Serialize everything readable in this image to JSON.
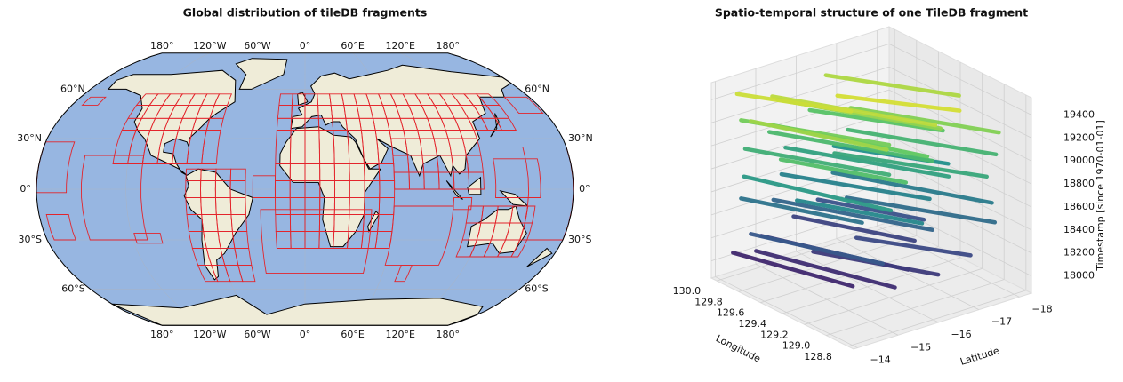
{
  "chart_data": [
    {
      "type": "map",
      "title": "Global distribution of tileDB fragments",
      "projection": "robinson",
      "color": "#e3242b",
      "xticks": [
        {
          "value": -180,
          "label": "180°"
        },
        {
          "value": -120,
          "label": "120°W"
        },
        {
          "value": -60,
          "label": "60°W"
        },
        {
          "value": 0,
          "label": "0°"
        },
        {
          "value": 60,
          "label": "60°E"
        },
        {
          "value": 120,
          "label": "120°E"
        },
        {
          "value": 180,
          "label": "180°"
        }
      ],
      "yticks": [
        {
          "value": 60,
          "label": "60°N"
        },
        {
          "value": 30,
          "label": "30°N"
        },
        {
          "value": 0,
          "label": "0°"
        },
        {
          "value": -30,
          "label": "30°S"
        },
        {
          "value": -60,
          "label": "60°S"
        }
      ],
      "grids": [
        {
          "lon": [
            -20,
            -10,
            0,
            10,
            20,
            30,
            40,
            50,
            60,
            70,
            80,
            90,
            100,
            110,
            120,
            130,
            140,
            150
          ],
          "lat": [
            35,
            42,
            50,
            57
          ]
        },
        {
          "lon": [
            -20,
            -10,
            0,
            10,
            20,
            30,
            40,
            50,
            60
          ],
          "lat": [
            -35,
            -25,
            -15,
            -5,
            5,
            15,
            25,
            35
          ]
        },
        {
          "lon": [
            -130,
            -120,
            -110,
            -100,
            -90,
            -80,
            -70,
            -60
          ],
          "lat": [
            15,
            25,
            35,
            42,
            50,
            57
          ]
        },
        {
          "lon": [
            -80,
            -70,
            -60,
            -50,
            -40
          ],
          "lat": [
            -55,
            -45,
            -35,
            -25,
            -15,
            -5,
            5,
            12
          ]
        },
        {
          "lon": [
            60,
            70,
            80,
            90,
            100,
            110,
            120
          ],
          "lat": [
            0,
            10,
            20,
            30,
            35
          ]
        },
        {
          "lon": [
            110,
            120,
            130,
            140,
            150,
            155
          ],
          "lat": [
            -40,
            -30,
            -20,
            -10
          ]
        }
      ],
      "fragments": [
        {
          "lon": [
            -180,
            -160
          ],
          "lat": [
            -2,
            28
          ]
        },
        {
          "lon": [
            -175,
            -160
          ],
          "lat": [
            -30,
            -15
          ]
        },
        {
          "lon": [
            -150,
            -110
          ],
          "lat": [
            -30,
            20
          ]
        },
        {
          "lon": [
            -118,
            -100
          ],
          "lat": [
            -32,
            -26
          ]
        },
        {
          "lon": [
            -30,
            45
          ],
          "lat": [
            -50,
            -12
          ]
        },
        {
          "lon": [
            60,
            100
          ],
          "lat": [
            -45,
            -10
          ]
        },
        {
          "lon": [
            72,
            80
          ],
          "lat": [
            -55,
            -45
          ]
        },
        {
          "lon": [
            150,
            180
          ],
          "lat": [
            -30,
            25
          ]
        },
        {
          "lon": [
            128,
            158
          ],
          "lat": [
            -5,
            18
          ]
        },
        {
          "lon": [
            160,
            178
          ],
          "lat": [
            45,
            55
          ]
        },
        {
          "lon": [
            -172,
            -160
          ],
          "lat": [
            50,
            55
          ]
        },
        {
          "lon": [
            -35,
            -20
          ],
          "lat": [
            -5,
            8
          ]
        },
        {
          "lon": [
            100,
            112
          ],
          "lat": [
            -12,
            -5
          ]
        }
      ]
    },
    {
      "type": "line3d",
      "title": "Spatio-temporal structure of one TileDB fragment",
      "xlabel": "Longitude",
      "ylabel": "Latitude",
      "zlabel": "Timestamp [since 1970-01-01]",
      "colormap": "viridis",
      "xlim": [
        128.75,
        130.05
      ],
      "ylim": [
        -13.9,
        -18.3
      ],
      "zlim": [
        17850,
        19550
      ],
      "xticks": [
        {
          "value": 130,
          "label": "130.0"
        },
        129.8,
        129.6,
        129.4,
        129.2,
        {
          "value": 129,
          "label": "129.0"
        },
        128.8
      ],
      "yticks": [
        {
          "value": -14,
          "label": "−14"
        },
        {
          "value": -15,
          "label": "−15"
        },
        {
          "value": -16,
          "label": "−16"
        },
        {
          "value": -17,
          "label": "−17"
        },
        {
          "value": -18,
          "label": "−18"
        }
      ],
      "zticks": [
        18000,
        18200,
        18400,
        18600,
        18800,
        19000,
        19200,
        19400
      ],
      "tracks": [
        {
          "lon": [
            130.0,
            129.2
          ],
          "lat": [
            -14.3,
            -15.1
          ],
          "time": 18050
        },
        {
          "lon": [
            129.9,
            129.0
          ],
          "lat": [
            -14.6,
            -15.6
          ],
          "time": 18080
        },
        {
          "lon": [
            130.0,
            129.1
          ],
          "lat": [
            -15.0,
            -16.2
          ],
          "time": 18120
        },
        {
          "lon": [
            129.6,
            128.9
          ],
          "lat": [
            -15.2,
            -16.4
          ],
          "time": 18150
        },
        {
          "lon": [
            130.0,
            129.3
          ],
          "lat": [
            -15.8,
            -16.9
          ],
          "time": 18200
        },
        {
          "lon": [
            129.5,
            128.9
          ],
          "lat": [
            -16.0,
            -17.2
          ],
          "time": 18230
        },
        {
          "lon": [
            130.0,
            129.4
          ],
          "lat": [
            -16.4,
            -17.4
          ],
          "time": 18280
        },
        {
          "lon": [
            129.8,
            129.0
          ],
          "lat": [
            -14.2,
            -15.3
          ],
          "time": 18320
        },
        {
          "lon": [
            130.0,
            129.1
          ],
          "lat": [
            -15.3,
            -16.8
          ],
          "time": 18400
        },
        {
          "lon": [
            129.7,
            128.9
          ],
          "lat": [
            -16.3,
            -17.8
          ],
          "time": 18450
        },
        {
          "lon": [
            130.0,
            129.3
          ],
          "lat": [
            -14.5,
            -15.6
          ],
          "time": 18500
        },
        {
          "lon": [
            129.9,
            129.0
          ],
          "lat": [
            -16.5,
            -18.0
          ],
          "time": 18550
        },
        {
          "lon": [
            130.0,
            129.2
          ],
          "lat": [
            -15.5,
            -17.0
          ],
          "time": 18600
        },
        {
          "lon": [
            129.6,
            128.9
          ],
          "lat": [
            -14.8,
            -16.0
          ],
          "time": 18640
        },
        {
          "lon": [
            130.0,
            129.4
          ],
          "lat": [
            -16.8,
            -18.0
          ],
          "time": 18700
        },
        {
          "lon": [
            129.9,
            129.0
          ],
          "lat": [
            -14.3,
            -15.5
          ],
          "time": 18760
        },
        {
          "lon": [
            130.0,
            129.1
          ],
          "lat": [
            -15.6,
            -17.2
          ],
          "time": 18820
        },
        {
          "lon": [
            129.7,
            128.9
          ],
          "lat": [
            -16.0,
            -17.6
          ],
          "time": 18870
        },
        {
          "lon": [
            130.0,
            129.2
          ],
          "lat": [
            -14.6,
            -16.0
          ],
          "time": 18920
        },
        {
          "lon": [
            129.8,
            129.0
          ],
          "lat": [
            -16.6,
            -18.1
          ],
          "time": 18960
        },
        {
          "lon": [
            130.0,
            129.1
          ],
          "lat": [
            -15.2,
            -16.8
          ],
          "time": 19000
        },
        {
          "lon": [
            129.6,
            128.9
          ],
          "lat": [
            -14.4,
            -15.6
          ],
          "time": 19040
        },
        {
          "lon": [
            130.0,
            129.3
          ],
          "lat": [
            -16.2,
            -17.6
          ],
          "time": 19080
        },
        {
          "lon": [
            129.9,
            129.0
          ],
          "lat": [
            -15.0,
            -16.4
          ],
          "time": 19130
        },
        {
          "lon": [
            130.0,
            129.2
          ],
          "lat": [
            -14.5,
            -16.0
          ],
          "time": 19180
        },
        {
          "lon": [
            129.7,
            128.9
          ],
          "lat": [
            -16.4,
            -17.9
          ],
          "time": 19220
        },
        {
          "lon": [
            130.0,
            129.1
          ],
          "lat": [
            -15.4,
            -17.0
          ],
          "time": 19260
        },
        {
          "lon": [
            129.8,
            129.0
          ],
          "lat": [
            -14.2,
            -15.4
          ],
          "time": 19300
        },
        {
          "lon": [
            130.0,
            129.3
          ],
          "lat": [
            -16.6,
            -18.0
          ],
          "time": 19340
        },
        {
          "lon": [
            129.9,
            129.0
          ],
          "lat": [
            -15.0,
            -16.6
          ],
          "time": 19380
        },
        {
          "lon": [
            130.0,
            129.4
          ],
          "lat": [
            -14.4,
            -15.6
          ],
          "time": 19420
        },
        {
          "lon": [
            129.6,
            129.0
          ],
          "lat": [
            -15.8,
            -17.2
          ],
          "time": 19440
        }
      ]
    }
  ]
}
